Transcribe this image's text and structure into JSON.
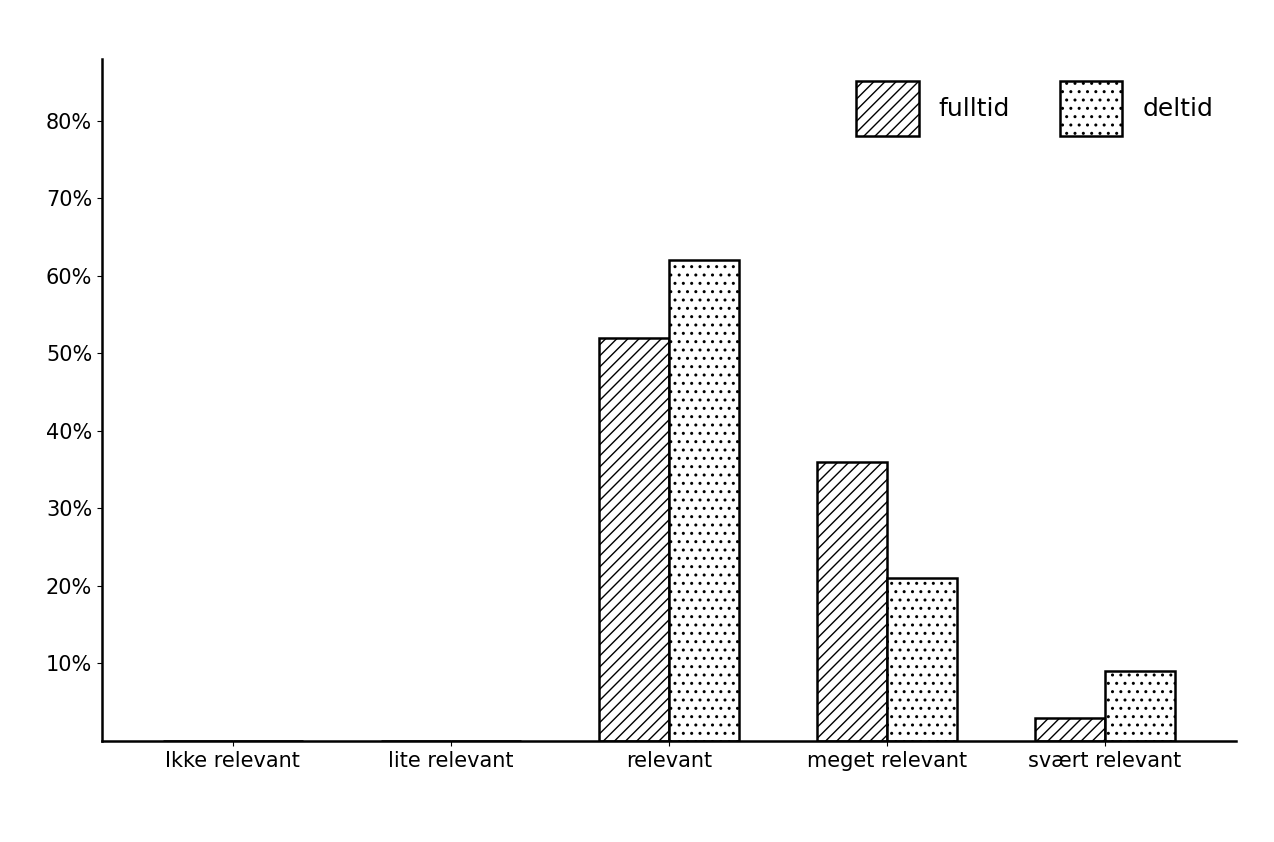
{
  "chart_data": {
    "type": "bar",
    "categories": [
      "Ikke relevant",
      "lite relevant",
      "relevant",
      "meget relevant",
      "svært relevant"
    ],
    "series": [
      {
        "name": "fulltid",
        "color": "#ffffff",
        "values": [
          0,
          0,
          52,
          36,
          3
        ]
      },
      {
        "name": "deltid",
        "color": "#ffffff",
        "values": [
          0,
          0,
          62,
          21,
          9
        ]
      }
    ],
    "ylim": [
      0,
      88
    ],
    "yticks": [
      {
        "value": 10,
        "label": "10%"
      },
      {
        "value": 20,
        "label": "20%"
      },
      {
        "value": 30,
        "label": "30%"
      },
      {
        "value": 40,
        "label": "40%"
      },
      {
        "value": 50,
        "label": "50%"
      },
      {
        "value": 60,
        "label": "60%"
      },
      {
        "value": 70,
        "label": "70%"
      },
      {
        "value": 80,
        "label": "80%"
      }
    ],
    "grid": false,
    "legend": "upper right"
  }
}
